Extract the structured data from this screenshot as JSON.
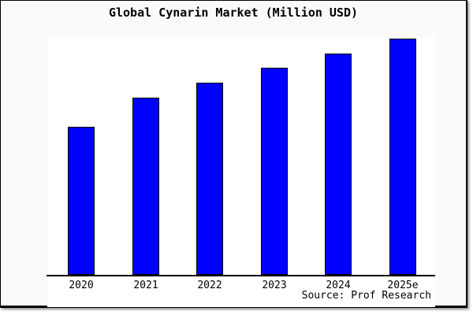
{
  "title": "Global Cynarin Market (Million USD)",
  "source_note": "Source: Prof Research",
  "colors": {
    "page_bg": "#fafafa",
    "plot_bg": "#ffffff",
    "bar_fill": "#0000ff",
    "bar_border": "#000000",
    "axis": "#000000",
    "text": "#000000",
    "border": "#000000"
  },
  "chart_data": {
    "type": "bar",
    "title": "Global Cynarin Market (Million USD)",
    "categories": [
      "2020",
      "2021",
      "2022",
      "2023",
      "2024",
      "2025e"
    ],
    "values_relative": [
      62.7,
      75.0,
      81.3,
      87.7,
      93.7,
      100.0
    ],
    "values_note": "No numeric y-axis, gridlines or data labels are shown in the chart; values are relative bar heights normalized so that 2025e = 100.",
    "xlabel": "",
    "ylabel": "",
    "y_axis_shown": false,
    "x_axis_shown": true,
    "grid": false,
    "legend": "none",
    "bar_color": "#0000ff",
    "source_note": "Source: Prof Research"
  }
}
